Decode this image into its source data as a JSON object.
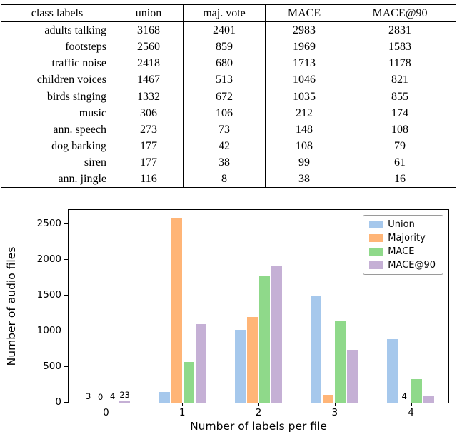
{
  "table": {
    "headers": [
      "class labels",
      "union",
      "maj. vote",
      "MACE",
      "MACE@90"
    ],
    "rows": [
      {
        "label": "adults talking",
        "values": [
          "3168",
          "2401",
          "2983",
          "2831"
        ]
      },
      {
        "label": "footsteps",
        "values": [
          "2560",
          "859",
          "1969",
          "1583"
        ]
      },
      {
        "label": "traffic noise",
        "values": [
          "2418",
          "680",
          "1713",
          "1178"
        ]
      },
      {
        "label": "children voices",
        "values": [
          "1467",
          "513",
          "1046",
          "821"
        ]
      },
      {
        "label": "birds singing",
        "values": [
          "1332",
          "672",
          "1035",
          "855"
        ]
      },
      {
        "label": "music",
        "values": [
          "306",
          "106",
          "212",
          "174"
        ]
      },
      {
        "label": "ann. speech",
        "values": [
          "273",
          "73",
          "148",
          "108"
        ]
      },
      {
        "label": "dog barking",
        "values": [
          "177",
          "42",
          "108",
          "79"
        ]
      },
      {
        "label": "siren",
        "values": [
          "177",
          "38",
          "99",
          "61"
        ]
      },
      {
        "label": "ann. jingle",
        "values": [
          "116",
          "8",
          "38",
          "16"
        ]
      }
    ]
  },
  "chart_data": {
    "type": "bar",
    "title": "",
    "xlabel": "Number of labels per file",
    "ylabel": "Number of audio files",
    "categories": [
      "0",
      "1",
      "2",
      "3",
      "4"
    ],
    "series": [
      {
        "name": "Union",
        "color": "#a6c8ec",
        "values": [
          3,
          150,
          1020,
          1500,
          890
        ]
      },
      {
        "name": "Majority",
        "color": "#ffb577",
        "values": [
          0,
          2580,
          1200,
          110,
          4
        ]
      },
      {
        "name": "MACE",
        "color": "#8fd98a",
        "values": [
          4,
          570,
          1770,
          1150,
          330
        ]
      },
      {
        "name": "MACE@90",
        "color": "#c5b0d5",
        "values": [
          23,
          1100,
          1910,
          740,
          100
        ]
      }
    ],
    "ylim": [
      0,
      2700
    ],
    "yticks": [
      0,
      500,
      1000,
      1500,
      2000,
      2500
    ],
    "legend_entries": [
      "Union",
      "Majority",
      "MACE",
      "MACE@90"
    ],
    "legend_position": "upper right",
    "grid": false,
    "bar_labels": {
      "0": [
        "3",
        "0",
        "4",
        "23"
      ],
      "4": [
        "",
        "4",
        "",
        ""
      ]
    }
  }
}
